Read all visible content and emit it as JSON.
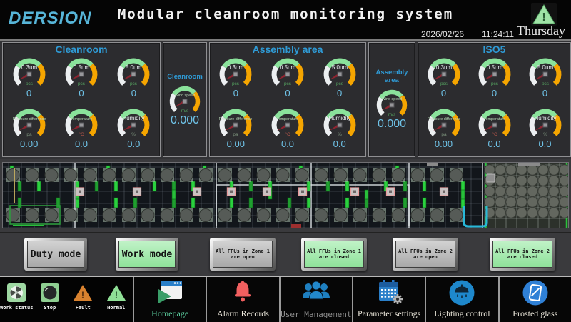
{
  "header": {
    "logo": "DERSION",
    "title": "Modular cleanroom monitoring system",
    "date": "2026/02/26",
    "time": "11:24:11",
    "weekday": "Thursday"
  },
  "colors": {
    "logo_blue": "#57b5d8",
    "panel_title_blue": "#2f9bd6",
    "gauge_white": "#eceff1",
    "gauge_green": "#8ae29b",
    "gauge_yellow": "#f5a500",
    "needle_red": "#8e2430",
    "value_blue": "#6fc3e8",
    "unit_green": "#55a05f",
    "button_green": "#9fe8a8",
    "button_gray": "#b9b9b9",
    "nav_blue": "#1e7fc0",
    "alarm_red": "#f15f5f",
    "fault_orange": "#d9822f",
    "normal_green": "#8fe096"
  },
  "panels": [
    {
      "title": "Cleanroom",
      "gauges": [
        {
          "label": "0.3um",
          "unit": "pcs",
          "unit_color": "#55a05f",
          "value": "0"
        },
        {
          "label": "0.5um",
          "unit": "pcs",
          "unit_color": "#55a05f",
          "value": "0"
        },
        {
          "label": "5.0um",
          "unit": "pcs",
          "unit_color": "#55a05f",
          "value": "0"
        },
        {
          "label": "Pressure difference",
          "unit": "pa",
          "unit_color": "#7e957e",
          "value": "0.00"
        },
        {
          "label": "Temperature",
          "unit": "°C",
          "unit_color": "#b8564a",
          "value": "0.0"
        },
        {
          "label": "Humidity",
          "unit": "%",
          "unit_color": "#7e957e",
          "value": "0.0"
        }
      ]
    },
    {
      "title": "Assembly area",
      "gauges": [
        {
          "label": "0.3um",
          "unit": "pcs",
          "unit_color": "#55a05f",
          "value": "0"
        },
        {
          "label": "0.5um",
          "unit": "pcs",
          "unit_color": "#55a05f",
          "value": "0"
        },
        {
          "label": "5.0um",
          "unit": "pcs",
          "unit_color": "#55a05f",
          "value": "0"
        },
        {
          "label": "Pressure difference",
          "unit": "pa",
          "unit_color": "#7e957e",
          "value": "0.00"
        },
        {
          "label": "Temperature",
          "unit": "°C",
          "unit_color": "#b8564a",
          "value": "0.0"
        },
        {
          "label": "Humidity",
          "unit": "%",
          "unit_color": "#7e957e",
          "value": "0.0"
        }
      ]
    },
    {
      "title": "ISO5",
      "gauges": [
        {
          "label": "0.3um",
          "unit": "pcs",
          "unit_color": "#55a05f",
          "value": "0"
        },
        {
          "label": "0.5um",
          "unit": "pcs",
          "unit_color": "#55a05f",
          "value": "0"
        },
        {
          "label": "5.0um",
          "unit": "pcs",
          "unit_color": "#55a05f",
          "value": "0"
        },
        {
          "label": "Pressure difference",
          "unit": "pa",
          "unit_color": "#7e957e",
          "value": "0.00"
        },
        {
          "label": "Temperature",
          "unit": "°C",
          "unit_color": "#b8564a",
          "value": "0.0"
        },
        {
          "label": "Humidity",
          "unit": "%",
          "unit_color": "#7e957e",
          "value": "0.0"
        }
      ]
    }
  ],
  "wind_gauges": [
    {
      "area": "Cleanroom",
      "label": "Wind speed",
      "unit": "m/s",
      "value": "0.000"
    },
    {
      "area": "Assembly area",
      "label": "Wind speed",
      "unit": "m/s",
      "value": "0.000"
    }
  ],
  "mode_buttons": [
    {
      "label": "Duty mode",
      "style": "gray",
      "size": "large"
    },
    {
      "label": "Work mode",
      "style": "green",
      "size": "large"
    },
    {
      "label": "All FFUs in Zone 1 are open",
      "style": "gray",
      "size": "small"
    },
    {
      "label": "All FFUs in Zone 1 are closed",
      "style": "green",
      "size": "small"
    },
    {
      "label": "All FFUs in Zone 2 are open",
      "style": "gray",
      "size": "small"
    },
    {
      "label": "All FFUs in Zone 2 are closed",
      "style": "green",
      "size": "small"
    }
  ],
  "status_legend": [
    {
      "label": "Work status",
      "icon": "fan-status-icon"
    },
    {
      "label": "Stop",
      "icon": "stop-icon"
    },
    {
      "label": "Fault",
      "icon": "fault-triangle-icon"
    },
    {
      "label": "Normal",
      "icon": "normal-triangle-icon"
    }
  ],
  "nav": [
    {
      "label": "Homepage",
      "icon": "homepage-icon",
      "label_color": "#58c89a"
    },
    {
      "label": "Alarm Records",
      "icon": "alarm-bell-icon",
      "label_color": "#eae6da"
    },
    {
      "label": "User Management",
      "icon": "users-icon",
      "label_color": "#8f8f8f"
    },
    {
      "label": "Parameter settings",
      "icon": "parameter-settings-icon",
      "label_color": "#eae6da"
    },
    {
      "label": "Lighting control",
      "icon": "lighting-icon",
      "label_color": "#eae6da"
    },
    {
      "label": "Frosted glass",
      "icon": "frosted-glass-icon",
      "label_color": "#eae6da"
    }
  ]
}
